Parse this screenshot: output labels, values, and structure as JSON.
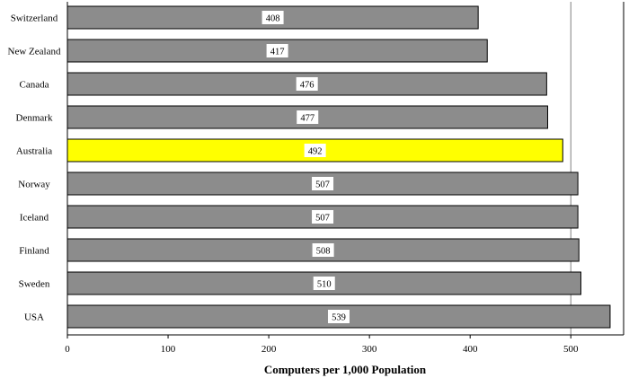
{
  "chart_data": {
    "type": "bar",
    "orientation": "horizontal",
    "categories": [
      "Switzerland",
      "New Zealand",
      "Canada",
      "Denmark",
      "Australia",
      "Norway",
      "Iceland",
      "Finland",
      "Sweden",
      "USA"
    ],
    "values": [
      408,
      417,
      476,
      477,
      492,
      507,
      507,
      508,
      510,
      539
    ],
    "xlabel": "Computers per 1,000 Population",
    "ylabel": "",
    "xlim": [
      0,
      550
    ],
    "x_ticks": [
      0,
      100,
      200,
      300,
      400,
      500
    ],
    "highlight_category": "Australia",
    "colors": {
      "bar": "#8c8c8c",
      "highlight": "#ffff00",
      "bar_edge": "#000000",
      "gridline": "#808080"
    },
    "grid": "vertical line at 500",
    "legend": "none"
  }
}
